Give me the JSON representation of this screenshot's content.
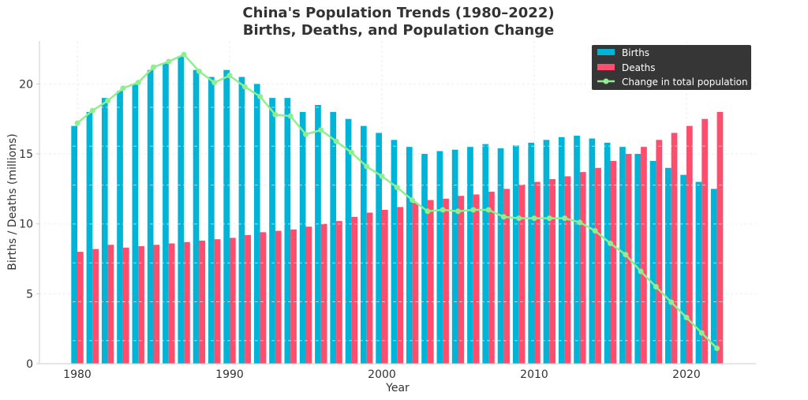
{
  "chart_data": {
    "type": "bar",
    "title": "China's Population Trends (1980–2022)",
    "subtitle": "Births, Deaths, and Population Change",
    "xlabel": "Year",
    "ylabel": "Births / Deaths (millions)",
    "xlim": [
      1977.8,
      2024.9
    ],
    "ylim": [
      0,
      23.1
    ],
    "xticks": [
      1980,
      1990,
      2000,
      2010,
      2020
    ],
    "yticks": [
      0,
      5,
      10,
      15,
      20
    ],
    "grid": true,
    "legend_position": "top-right",
    "x": [
      1980,
      1981,
      1982,
      1983,
      1984,
      1985,
      1986,
      1987,
      1988,
      1989,
      1990,
      1991,
      1992,
      1993,
      1994,
      1995,
      1996,
      1997,
      1998,
      1999,
      2000,
      2001,
      2002,
      2003,
      2004,
      2005,
      2006,
      2007,
      2008,
      2009,
      2010,
      2011,
      2012,
      2013,
      2014,
      2015,
      2016,
      2017,
      2018,
      2019,
      2020,
      2021,
      2022
    ],
    "series": [
      {
        "name": "Births",
        "type": "bar",
        "color": "#00b4d8",
        "values": [
          17,
          18,
          19,
          19.5,
          20,
          21,
          21.5,
          22,
          21,
          20.5,
          21,
          20.5,
          20,
          19,
          19,
          18,
          18.5,
          18,
          17.5,
          17,
          16.5,
          16,
          15.5,
          15,
          15.2,
          15.3,
          15.5,
          15.7,
          15.4,
          15.6,
          15.8,
          16,
          16.2,
          16.3,
          16.1,
          15.8,
          15.5,
          15,
          14.5,
          14,
          13.5,
          13,
          12.5
        ]
      },
      {
        "name": "Deaths",
        "type": "bar",
        "color": "#ff4d6d",
        "values": [
          8,
          8.2,
          8.5,
          8.3,
          8.4,
          8.5,
          8.6,
          8.7,
          8.8,
          8.9,
          9,
          9.2,
          9.4,
          9.5,
          9.6,
          9.8,
          10,
          10.2,
          10.5,
          10.8,
          11,
          11.2,
          11.5,
          11.7,
          11.8,
          12,
          12.1,
          12.3,
          12.5,
          12.8,
          13,
          13.2,
          13.4,
          13.7,
          14,
          14.5,
          15,
          15.5,
          16,
          16.5,
          17,
          17.5,
          18
        ]
      },
      {
        "name": "Change in total population",
        "type": "line",
        "color": "#90ee90",
        "values": [
          17.2,
          18.1,
          18.8,
          19.7,
          20.1,
          21.2,
          21.6,
          22.1,
          20.9,
          20.1,
          20.6,
          19.8,
          19.1,
          17.8,
          17.7,
          16.4,
          16.7,
          15.9,
          15.1,
          14.1,
          13.4,
          12.6,
          11.7,
          10.9,
          11.0,
          10.9,
          11.0,
          11.0,
          10.5,
          10.4,
          10.4,
          10.4,
          10.4,
          10.1,
          9.5,
          8.6,
          7.8,
          6.6,
          5.5,
          4.4,
          3.3,
          2.2,
          1.1
        ]
      }
    ]
  }
}
